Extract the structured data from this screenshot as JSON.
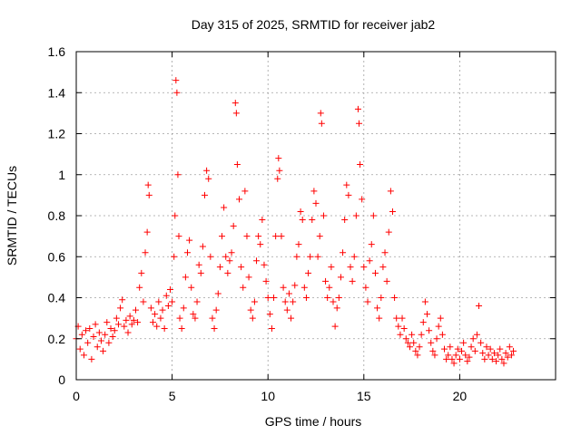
{
  "chart_data": {
    "type": "scatter",
    "title": "Day 315 of 2025, SRMTID for receiver jab2",
    "xlabel": "GPS time / hours",
    "ylabel": "SRMTID / TECUs",
    "xlim": [
      0,
      25
    ],
    "ylim": [
      0,
      1.6
    ],
    "x_ticks": [
      0,
      5,
      10,
      15,
      20
    ],
    "x_tick_labels": [
      "0",
      "5",
      "10",
      "15",
      "20"
    ],
    "y_ticks": [
      0,
      0.2,
      0.4,
      0.6,
      0.8,
      1.0,
      1.2,
      1.4,
      1.6
    ],
    "y_tick_labels": [
      "0",
      "0.2",
      "0.4",
      "0.6",
      "0.8",
      "1",
      "1.2",
      "1.4",
      "1.6"
    ],
    "grid": true,
    "marker": "+",
    "marker_color": "#ff0000",
    "series": [
      {
        "name": "SRMTID",
        "points": [
          [
            0.0,
            0.2
          ],
          [
            0.1,
            0.26
          ],
          [
            0.2,
            0.15
          ],
          [
            0.3,
            0.22
          ],
          [
            0.4,
            0.12
          ],
          [
            0.5,
            0.24
          ],
          [
            0.6,
            0.18
          ],
          [
            0.7,
            0.25
          ],
          [
            0.8,
            0.1
          ],
          [
            0.9,
            0.21
          ],
          [
            1.0,
            0.27
          ],
          [
            1.1,
            0.16
          ],
          [
            1.2,
            0.23
          ],
          [
            1.3,
            0.19
          ],
          [
            1.4,
            0.14
          ],
          [
            1.5,
            0.22
          ],
          [
            1.6,
            0.28
          ],
          [
            1.7,
            0.18
          ],
          [
            1.8,
            0.25
          ],
          [
            1.9,
            0.21
          ],
          [
            2.0,
            0.24
          ],
          [
            2.1,
            0.3
          ],
          [
            2.2,
            0.27
          ],
          [
            2.3,
            0.35
          ],
          [
            2.4,
            0.39
          ],
          [
            2.5,
            0.26
          ],
          [
            2.6,
            0.29
          ],
          [
            2.7,
            0.23
          ],
          [
            2.8,
            0.31
          ],
          [
            2.9,
            0.27
          ],
          [
            3.0,
            0.29
          ],
          [
            3.1,
            0.34
          ],
          [
            3.2,
            0.28
          ],
          [
            3.3,
            0.45
          ],
          [
            3.4,
            0.52
          ],
          [
            3.5,
            0.38
          ],
          [
            3.6,
            0.62
          ],
          [
            3.7,
            0.72
          ],
          [
            3.75,
            0.95
          ],
          [
            3.8,
            0.9
          ],
          [
            3.9,
            0.35
          ],
          [
            4.0,
            0.28
          ],
          [
            4.1,
            0.32
          ],
          [
            4.2,
            0.26
          ],
          [
            4.3,
            0.38
          ],
          [
            4.4,
            0.3
          ],
          [
            4.5,
            0.34
          ],
          [
            4.6,
            0.25
          ],
          [
            4.7,
            0.41
          ],
          [
            4.8,
            0.36
          ],
          [
            4.9,
            0.44
          ],
          [
            5.0,
            0.38
          ],
          [
            5.1,
            0.6
          ],
          [
            5.15,
            0.8
          ],
          [
            5.2,
            1.46
          ],
          [
            5.25,
            1.4
          ],
          [
            5.3,
            1.0
          ],
          [
            5.35,
            0.7
          ],
          [
            5.4,
            0.3
          ],
          [
            5.5,
            0.25
          ],
          [
            5.6,
            0.35
          ],
          [
            5.7,
            0.5
          ],
          [
            5.8,
            0.62
          ],
          [
            5.9,
            0.68
          ],
          [
            6.0,
            0.45
          ],
          [
            6.1,
            0.32
          ],
          [
            6.2,
            0.3
          ],
          [
            6.3,
            0.38
          ],
          [
            6.4,
            0.56
          ],
          [
            6.5,
            0.52
          ],
          [
            6.6,
            0.65
          ],
          [
            6.7,
            0.9
          ],
          [
            6.8,
            1.02
          ],
          [
            6.9,
            0.98
          ],
          [
            7.0,
            0.6
          ],
          [
            7.1,
            0.3
          ],
          [
            7.2,
            0.25
          ],
          [
            7.3,
            0.34
          ],
          [
            7.4,
            0.42
          ],
          [
            7.5,
            0.55
          ],
          [
            7.6,
            0.7
          ],
          [
            7.7,
            0.84
          ],
          [
            7.8,
            0.6
          ],
          [
            7.9,
            0.52
          ],
          [
            8.0,
            0.58
          ],
          [
            8.1,
            0.62
          ],
          [
            8.2,
            0.75
          ],
          [
            8.3,
            1.35
          ],
          [
            8.35,
            1.3
          ],
          [
            8.4,
            1.05
          ],
          [
            8.5,
            0.88
          ],
          [
            8.6,
            0.55
          ],
          [
            8.7,
            0.45
          ],
          [
            8.8,
            0.92
          ],
          [
            8.9,
            0.7
          ],
          [
            9.0,
            0.5
          ],
          [
            9.1,
            0.34
          ],
          [
            9.2,
            0.3
          ],
          [
            9.3,
            0.38
          ],
          [
            9.4,
            0.58
          ],
          [
            9.5,
            0.7
          ],
          [
            9.6,
            0.66
          ],
          [
            9.7,
            0.78
          ],
          [
            9.8,
            0.56
          ],
          [
            9.9,
            0.48
          ],
          [
            10.0,
            0.4
          ],
          [
            10.1,
            0.32
          ],
          [
            10.2,
            0.25
          ],
          [
            10.3,
            0.4
          ],
          [
            10.4,
            0.7
          ],
          [
            10.5,
            0.98
          ],
          [
            10.55,
            1.08
          ],
          [
            10.6,
            1.02
          ],
          [
            10.7,
            0.7
          ],
          [
            10.8,
            0.45
          ],
          [
            10.9,
            0.38
          ],
          [
            11.0,
            0.34
          ],
          [
            11.1,
            0.42
          ],
          [
            11.2,
            0.3
          ],
          [
            11.3,
            0.38
          ],
          [
            11.4,
            0.46
          ],
          [
            11.5,
            0.6
          ],
          [
            11.6,
            0.66
          ],
          [
            11.7,
            0.82
          ],
          [
            11.8,
            0.78
          ],
          [
            11.9,
            0.45
          ],
          [
            12.0,
            0.4
          ],
          [
            12.1,
            0.52
          ],
          [
            12.2,
            0.6
          ],
          [
            12.3,
            0.78
          ],
          [
            12.4,
            0.92
          ],
          [
            12.5,
            0.86
          ],
          [
            12.6,
            0.6
          ],
          [
            12.7,
            0.7
          ],
          [
            12.75,
            1.3
          ],
          [
            12.8,
            1.25
          ],
          [
            12.9,
            0.8
          ],
          [
            13.0,
            0.48
          ],
          [
            13.1,
            0.4
          ],
          [
            13.2,
            0.45
          ],
          [
            13.3,
            0.55
          ],
          [
            13.4,
            0.38
          ],
          [
            13.5,
            0.26
          ],
          [
            13.6,
            0.35
          ],
          [
            13.7,
            0.4
          ],
          [
            13.8,
            0.5
          ],
          [
            13.9,
            0.62
          ],
          [
            14.0,
            0.78
          ],
          [
            14.1,
            0.95
          ],
          [
            14.2,
            0.9
          ],
          [
            14.3,
            0.55
          ],
          [
            14.4,
            0.48
          ],
          [
            14.5,
            0.6
          ],
          [
            14.6,
            0.8
          ],
          [
            14.7,
            1.32
          ],
          [
            14.75,
            1.25
          ],
          [
            14.8,
            1.05
          ],
          [
            14.9,
            0.88
          ],
          [
            15.0,
            0.55
          ],
          [
            15.1,
            0.45
          ],
          [
            15.2,
            0.38
          ],
          [
            15.3,
            0.58
          ],
          [
            15.4,
            0.66
          ],
          [
            15.5,
            0.8
          ],
          [
            15.6,
            0.52
          ],
          [
            15.7,
            0.35
          ],
          [
            15.8,
            0.3
          ],
          [
            15.9,
            0.4
          ],
          [
            16.0,
            0.55
          ],
          [
            16.1,
            0.62
          ],
          [
            16.2,
            0.48
          ],
          [
            16.3,
            0.72
          ],
          [
            16.4,
            0.92
          ],
          [
            16.5,
            0.82
          ],
          [
            16.6,
            0.4
          ],
          [
            16.7,
            0.3
          ],
          [
            16.8,
            0.26
          ],
          [
            16.9,
            0.22
          ],
          [
            17.0,
            0.3
          ],
          [
            17.1,
            0.25
          ],
          [
            17.2,
            0.2
          ],
          [
            17.3,
            0.18
          ],
          [
            17.4,
            0.16
          ],
          [
            17.5,
            0.22
          ],
          [
            17.6,
            0.18
          ],
          [
            17.7,
            0.14
          ],
          [
            17.8,
            0.12
          ],
          [
            17.9,
            0.16
          ],
          [
            18.0,
            0.22
          ],
          [
            18.1,
            0.28
          ],
          [
            18.2,
            0.38
          ],
          [
            18.3,
            0.32
          ],
          [
            18.4,
            0.24
          ],
          [
            18.5,
            0.18
          ],
          [
            18.6,
            0.14
          ],
          [
            18.7,
            0.12
          ],
          [
            18.8,
            0.2
          ],
          [
            18.9,
            0.26
          ],
          [
            19.0,
            0.3
          ],
          [
            19.1,
            0.22
          ],
          [
            19.2,
            0.15
          ],
          [
            19.3,
            0.1
          ],
          [
            19.4,
            0.12
          ],
          [
            19.5,
            0.16
          ],
          [
            19.6,
            0.1
          ],
          [
            19.7,
            0.08
          ],
          [
            19.8,
            0.12
          ],
          [
            19.9,
            0.15
          ],
          [
            20.0,
            0.1
          ],
          [
            20.1,
            0.14
          ],
          [
            20.2,
            0.18
          ],
          [
            20.3,
            0.12
          ],
          [
            20.4,
            0.09
          ],
          [
            20.5,
            0.11
          ],
          [
            20.6,
            0.16
          ],
          [
            20.7,
            0.2
          ],
          [
            20.8,
            0.14
          ],
          [
            20.9,
            0.22
          ],
          [
            21.0,
            0.36
          ],
          [
            21.1,
            0.18
          ],
          [
            21.2,
            0.13
          ],
          [
            21.3,
            0.1
          ],
          [
            21.4,
            0.16
          ],
          [
            21.5,
            0.12
          ],
          [
            21.6,
            0.15
          ],
          [
            21.7,
            0.1
          ],
          [
            21.8,
            0.13
          ],
          [
            21.9,
            0.09
          ],
          [
            22.0,
            0.12
          ],
          [
            22.1,
            0.15
          ],
          [
            22.2,
            0.1
          ],
          [
            22.3,
            0.08
          ],
          [
            22.4,
            0.13
          ],
          [
            22.5,
            0.11
          ],
          [
            22.6,
            0.16
          ],
          [
            22.7,
            0.12
          ],
          [
            22.8,
            0.14
          ]
        ]
      }
    ]
  }
}
